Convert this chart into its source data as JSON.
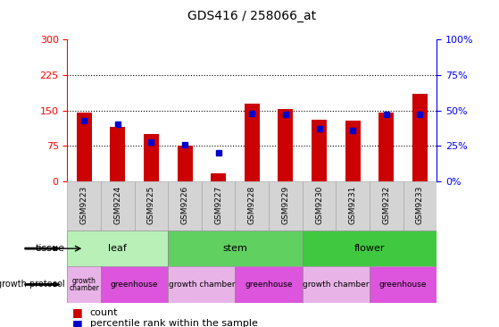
{
  "title": "GDS416 / 258066_at",
  "samples": [
    "GSM9223",
    "GSM9224",
    "GSM9225",
    "GSM9226",
    "GSM9227",
    "GSM9228",
    "GSM9229",
    "GSM9230",
    "GSM9231",
    "GSM9232",
    "GSM9233"
  ],
  "counts": [
    145,
    115,
    100,
    75,
    18,
    165,
    152,
    130,
    128,
    145,
    185
  ],
  "percentiles": [
    43,
    40,
    28,
    26,
    20,
    48,
    47,
    37,
    36,
    47,
    47
  ],
  "tissue_groups": [
    {
      "label": "leaf",
      "start": 0,
      "end": 3
    },
    {
      "label": "stem",
      "start": 3,
      "end": 7
    },
    {
      "label": "flower",
      "start": 7,
      "end": 11
    }
  ],
  "tissue_colors": {
    "leaf": "#b8f0b8",
    "stem": "#60d060",
    "flower": "#40c840"
  },
  "prot_groups": [
    {
      "label": "growth\nchamber",
      "start": 0,
      "end": 1,
      "small": true
    },
    {
      "label": "greenhouse",
      "start": 1,
      "end": 3,
      "small": false
    },
    {
      "label": "growth chamber",
      "start": 3,
      "end": 5,
      "small": false
    },
    {
      "label": "greenhouse",
      "start": 5,
      "end": 7,
      "small": false
    },
    {
      "label": "growth chamber",
      "start": 7,
      "end": 9,
      "small": false
    },
    {
      "label": "greenhouse",
      "start": 9,
      "end": 11,
      "small": false
    }
  ],
  "prot_colors": {
    "growth\nchamber": "#e8b4e8",
    "growth chamber": "#e8b4e8",
    "greenhouse": "#dd55dd"
  },
  "ylim_left": [
    0,
    300
  ],
  "ylim_right": [
    0,
    100
  ],
  "yticks_left": [
    0,
    75,
    150,
    225,
    300
  ],
  "yticks_right": [
    0,
    25,
    50,
    75,
    100
  ],
  "hgrid_vals": [
    75,
    150,
    225
  ],
  "bar_color": "#cc0000",
  "marker_color": "#0000cc",
  "bar_width": 0.45,
  "marker_size": 5
}
